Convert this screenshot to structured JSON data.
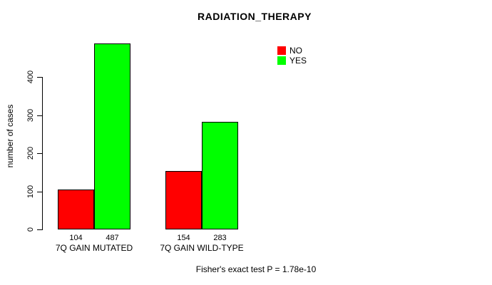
{
  "chart_data": {
    "type": "bar",
    "title": "RADIATION_THERAPY",
    "ylabel": "number of cases",
    "xlabel": "",
    "categories": [
      "7Q GAIN MUTATED",
      "7Q GAIN WILD-TYPE"
    ],
    "series": [
      {
        "name": "NO",
        "color": "#ff0000",
        "values": [
          104,
          154
        ]
      },
      {
        "name": "YES",
        "color": "#00ff00",
        "values": [
          487,
          283
        ]
      }
    ],
    "yticks": [
      0,
      100,
      200,
      300,
      400
    ],
    "ylim": [
      0,
      500
    ],
    "grid": false,
    "legend_position": "top-right",
    "bar_border_color": "#000000",
    "axis_color": "#000000",
    "annotation": "Fisher's exact test P = 1.78e-10"
  }
}
